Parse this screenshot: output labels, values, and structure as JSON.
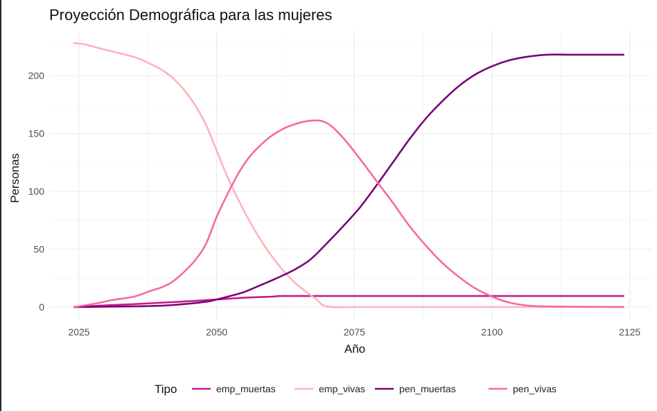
{
  "chart_data": {
    "type": "line",
    "title": "Proyección Demográfica para las mujeres",
    "xlabel": "Año",
    "ylabel": "Personas",
    "xlim": [
      2024,
      2124
    ],
    "ylim": [
      0,
      228
    ],
    "x_ticks": [
      2025,
      2050,
      2075,
      2100,
      2125
    ],
    "y_ticks": [
      0,
      50,
      100,
      150,
      200
    ],
    "grid": true,
    "legend": {
      "title": "Tipo",
      "position": "bottom"
    },
    "series": [
      {
        "name": "emp_muertas",
        "color": "#c51b8a",
        "points": [
          [
            2024,
            0
          ],
          [
            2030,
            1.5
          ],
          [
            2035,
            2.5
          ],
          [
            2040,
            3.8
          ],
          [
            2045,
            5
          ],
          [
            2050,
            6.5
          ],
          [
            2055,
            8
          ],
          [
            2060,
            9
          ],
          [
            2062,
            9.5
          ],
          [
            2070,
            9.5
          ],
          [
            2080,
            9.5
          ],
          [
            2090,
            9.5
          ],
          [
            2100,
            9.5
          ],
          [
            2110,
            9.5
          ],
          [
            2124,
            9.5
          ]
        ]
      },
      {
        "name": "emp_vivas",
        "color": "#fbb4b9",
        "points": [
          [
            2024,
            228
          ],
          [
            2026,
            227
          ],
          [
            2030,
            222
          ],
          [
            2035,
            216
          ],
          [
            2038,
            210
          ],
          [
            2040,
            205
          ],
          [
            2042,
            198
          ],
          [
            2044,
            188
          ],
          [
            2046,
            175
          ],
          [
            2048,
            158
          ],
          [
            2050,
            135
          ],
          [
            2052,
            112
          ],
          [
            2054,
            92
          ],
          [
            2056,
            74
          ],
          [
            2058,
            58
          ],
          [
            2060,
            44
          ],
          [
            2062,
            32
          ],
          [
            2064,
            22
          ],
          [
            2066,
            14
          ],
          [
            2068,
            7
          ],
          [
            2070,
            0.5
          ],
          [
            2075,
            0
          ],
          [
            2085,
            0
          ],
          [
            2100,
            0
          ],
          [
            2124,
            0
          ]
        ]
      },
      {
        "name": "pen_muertas",
        "color": "#7a0177",
        "points": [
          [
            2024,
            0
          ],
          [
            2030,
            0.3
          ],
          [
            2035,
            0.6
          ],
          [
            2040,
            1.2
          ],
          [
            2044,
            2.5
          ],
          [
            2048,
            4.5
          ],
          [
            2050,
            6.5
          ],
          [
            2052,
            9
          ],
          [
            2055,
            13
          ],
          [
            2058,
            19
          ],
          [
            2060,
            23
          ],
          [
            2064,
            32
          ],
          [
            2067,
            41
          ],
          [
            2070,
            55
          ],
          [
            2073,
            70
          ],
          [
            2076,
            86
          ],
          [
            2079,
            105
          ],
          [
            2082,
            125
          ],
          [
            2085,
            145
          ],
          [
            2088,
            163
          ],
          [
            2091,
            178
          ],
          [
            2094,
            191
          ],
          [
            2097,
            201
          ],
          [
            2100,
            208
          ],
          [
            2103,
            213
          ],
          [
            2106,
            216
          ],
          [
            2110,
            218
          ],
          [
            2115,
            218
          ],
          [
            2124,
            218
          ]
        ]
      },
      {
        "name": "pen_vivas",
        "color": "#f768a1",
        "points": [
          [
            2024,
            0
          ],
          [
            2028,
            3
          ],
          [
            2031,
            6
          ],
          [
            2035,
            9
          ],
          [
            2038,
            14
          ],
          [
            2040,
            17
          ],
          [
            2042,
            22
          ],
          [
            2044,
            30
          ],
          [
            2046,
            40
          ],
          [
            2048,
            54
          ],
          [
            2050,
            78
          ],
          [
            2052,
            98
          ],
          [
            2054,
            116
          ],
          [
            2056,
            130
          ],
          [
            2058,
            140
          ],
          [
            2060,
            148
          ],
          [
            2063,
            156
          ],
          [
            2067,
            161
          ],
          [
            2070,
            159
          ],
          [
            2073,
            146
          ],
          [
            2076,
            128
          ],
          [
            2079,
            109
          ],
          [
            2082,
            90
          ],
          [
            2085,
            70
          ],
          [
            2088,
            53
          ],
          [
            2091,
            38
          ],
          [
            2094,
            26
          ],
          [
            2097,
            16
          ],
          [
            2100,
            9
          ],
          [
            2103,
            4
          ],
          [
            2106,
            1.5
          ],
          [
            2110,
            0.5
          ],
          [
            2124,
            0
          ]
        ]
      }
    ]
  }
}
